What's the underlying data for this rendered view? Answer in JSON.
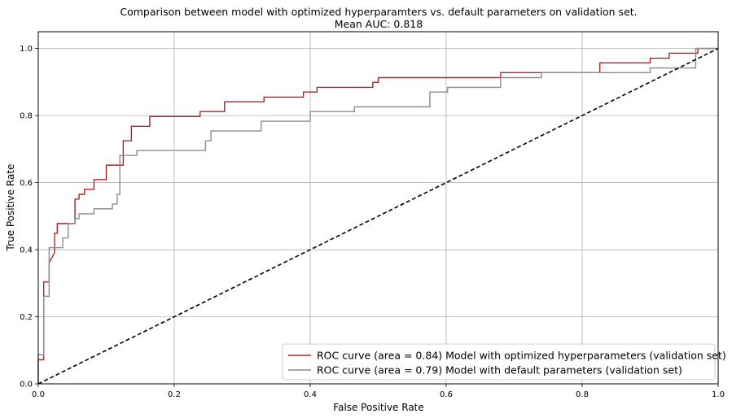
{
  "chart_data": {
    "type": "line",
    "title": "Comparison between model with optimized hyperparamters vs. default parameters on validation set.",
    "subtitle": "Mean AUC: 0.818",
    "xlabel": "False Positive Rate",
    "ylabel": "True Positive Rate",
    "xlim": [
      0,
      1
    ],
    "ylim": [
      0,
      1.05
    ],
    "xticks": [
      "0.0",
      "0.2",
      "0.4",
      "0.6",
      "0.8",
      "1.0"
    ],
    "yticks": [
      "0.0",
      "0.2",
      "0.4",
      "0.6",
      "0.8",
      "1.0"
    ],
    "grid": true,
    "legend_position": "lower-right",
    "series": [
      {
        "name": "ROC curve (area = 0.84) Model with optimized hyperparameters (validation set)",
        "color": "#b22222",
        "style": "solid",
        "x": [
          0.0,
          0.0,
          0.008,
          0.008,
          0.016,
          0.016,
          0.02,
          0.024,
          0.024,
          0.028,
          0.028,
          0.036,
          0.036,
          0.054,
          0.054,
          0.06,
          0.06,
          0.068,
          0.068,
          0.082,
          0.082,
          0.1,
          0.1,
          0.12,
          0.12,
          0.125,
          0.125,
          0.137,
          0.137,
          0.164,
          0.164,
          0.238,
          0.238,
          0.274,
          0.274,
          0.332,
          0.332,
          0.39,
          0.39,
          0.41,
          0.41,
          0.492,
          0.492,
          0.5,
          0.5,
          0.68,
          0.68,
          0.826,
          0.826,
          0.9,
          0.9,
          0.928,
          0.928,
          0.97,
          0.97,
          1.0
        ],
        "y": [
          0.0,
          0.072,
          0.072,
          0.304,
          0.304,
          0.362,
          0.376,
          0.391,
          0.449,
          0.449,
          0.478,
          0.478,
          0.478,
          0.478,
          0.551,
          0.551,
          0.565,
          0.565,
          0.58,
          0.58,
          0.609,
          0.609,
          0.652,
          0.652,
          0.652,
          0.652,
          0.725,
          0.725,
          0.768,
          0.768,
          0.797,
          0.797,
          0.812,
          0.812,
          0.841,
          0.841,
          0.855,
          0.855,
          0.87,
          0.87,
          0.884,
          0.884,
          0.899,
          0.899,
          0.913,
          0.913,
          0.928,
          0.928,
          0.957,
          0.957,
          0.971,
          0.971,
          0.986,
          0.986,
          1.0,
          1.0
        ]
      },
      {
        "name": "ROC curve (area = 0.79) Model with default parameters (validation set)",
        "color": "#8c8c8c",
        "style": "solid",
        "x": [
          0.0,
          0.0,
          0.008,
          0.008,
          0.016,
          0.016,
          0.028,
          0.028,
          0.036,
          0.036,
          0.044,
          0.044,
          0.054,
          0.054,
          0.06,
          0.06,
          0.068,
          0.068,
          0.082,
          0.082,
          0.109,
          0.109,
          0.116,
          0.116,
          0.12,
          0.12,
          0.137,
          0.137,
          0.145,
          0.145,
          0.246,
          0.246,
          0.254,
          0.254,
          0.328,
          0.328,
          0.4,
          0.4,
          0.465,
          0.465,
          0.576,
          0.576,
          0.602,
          0.602,
          0.68,
          0.68,
          0.74,
          0.74,
          0.9,
          0.9,
          0.967,
          0.967,
          1.0
        ],
        "y": [
          0.0,
          0.087,
          0.087,
          0.261,
          0.261,
          0.406,
          0.406,
          0.406,
          0.406,
          0.435,
          0.435,
          0.478,
          0.478,
          0.493,
          0.493,
          0.507,
          0.507,
          0.507,
          0.507,
          0.522,
          0.522,
          0.536,
          0.536,
          0.565,
          0.565,
          0.681,
          0.681,
          0.681,
          0.681,
          0.696,
          0.696,
          0.725,
          0.725,
          0.754,
          0.754,
          0.783,
          0.783,
          0.812,
          0.812,
          0.826,
          0.826,
          0.87,
          0.87,
          0.884,
          0.884,
          0.913,
          0.913,
          0.928,
          0.928,
          0.942,
          0.942,
          1.0,
          1.0
        ]
      },
      {
        "name": "",
        "color": "#000000",
        "style": "dashed",
        "x": [
          0.0,
          1.0
        ],
        "y": [
          0.0,
          1.0
        ]
      }
    ]
  }
}
